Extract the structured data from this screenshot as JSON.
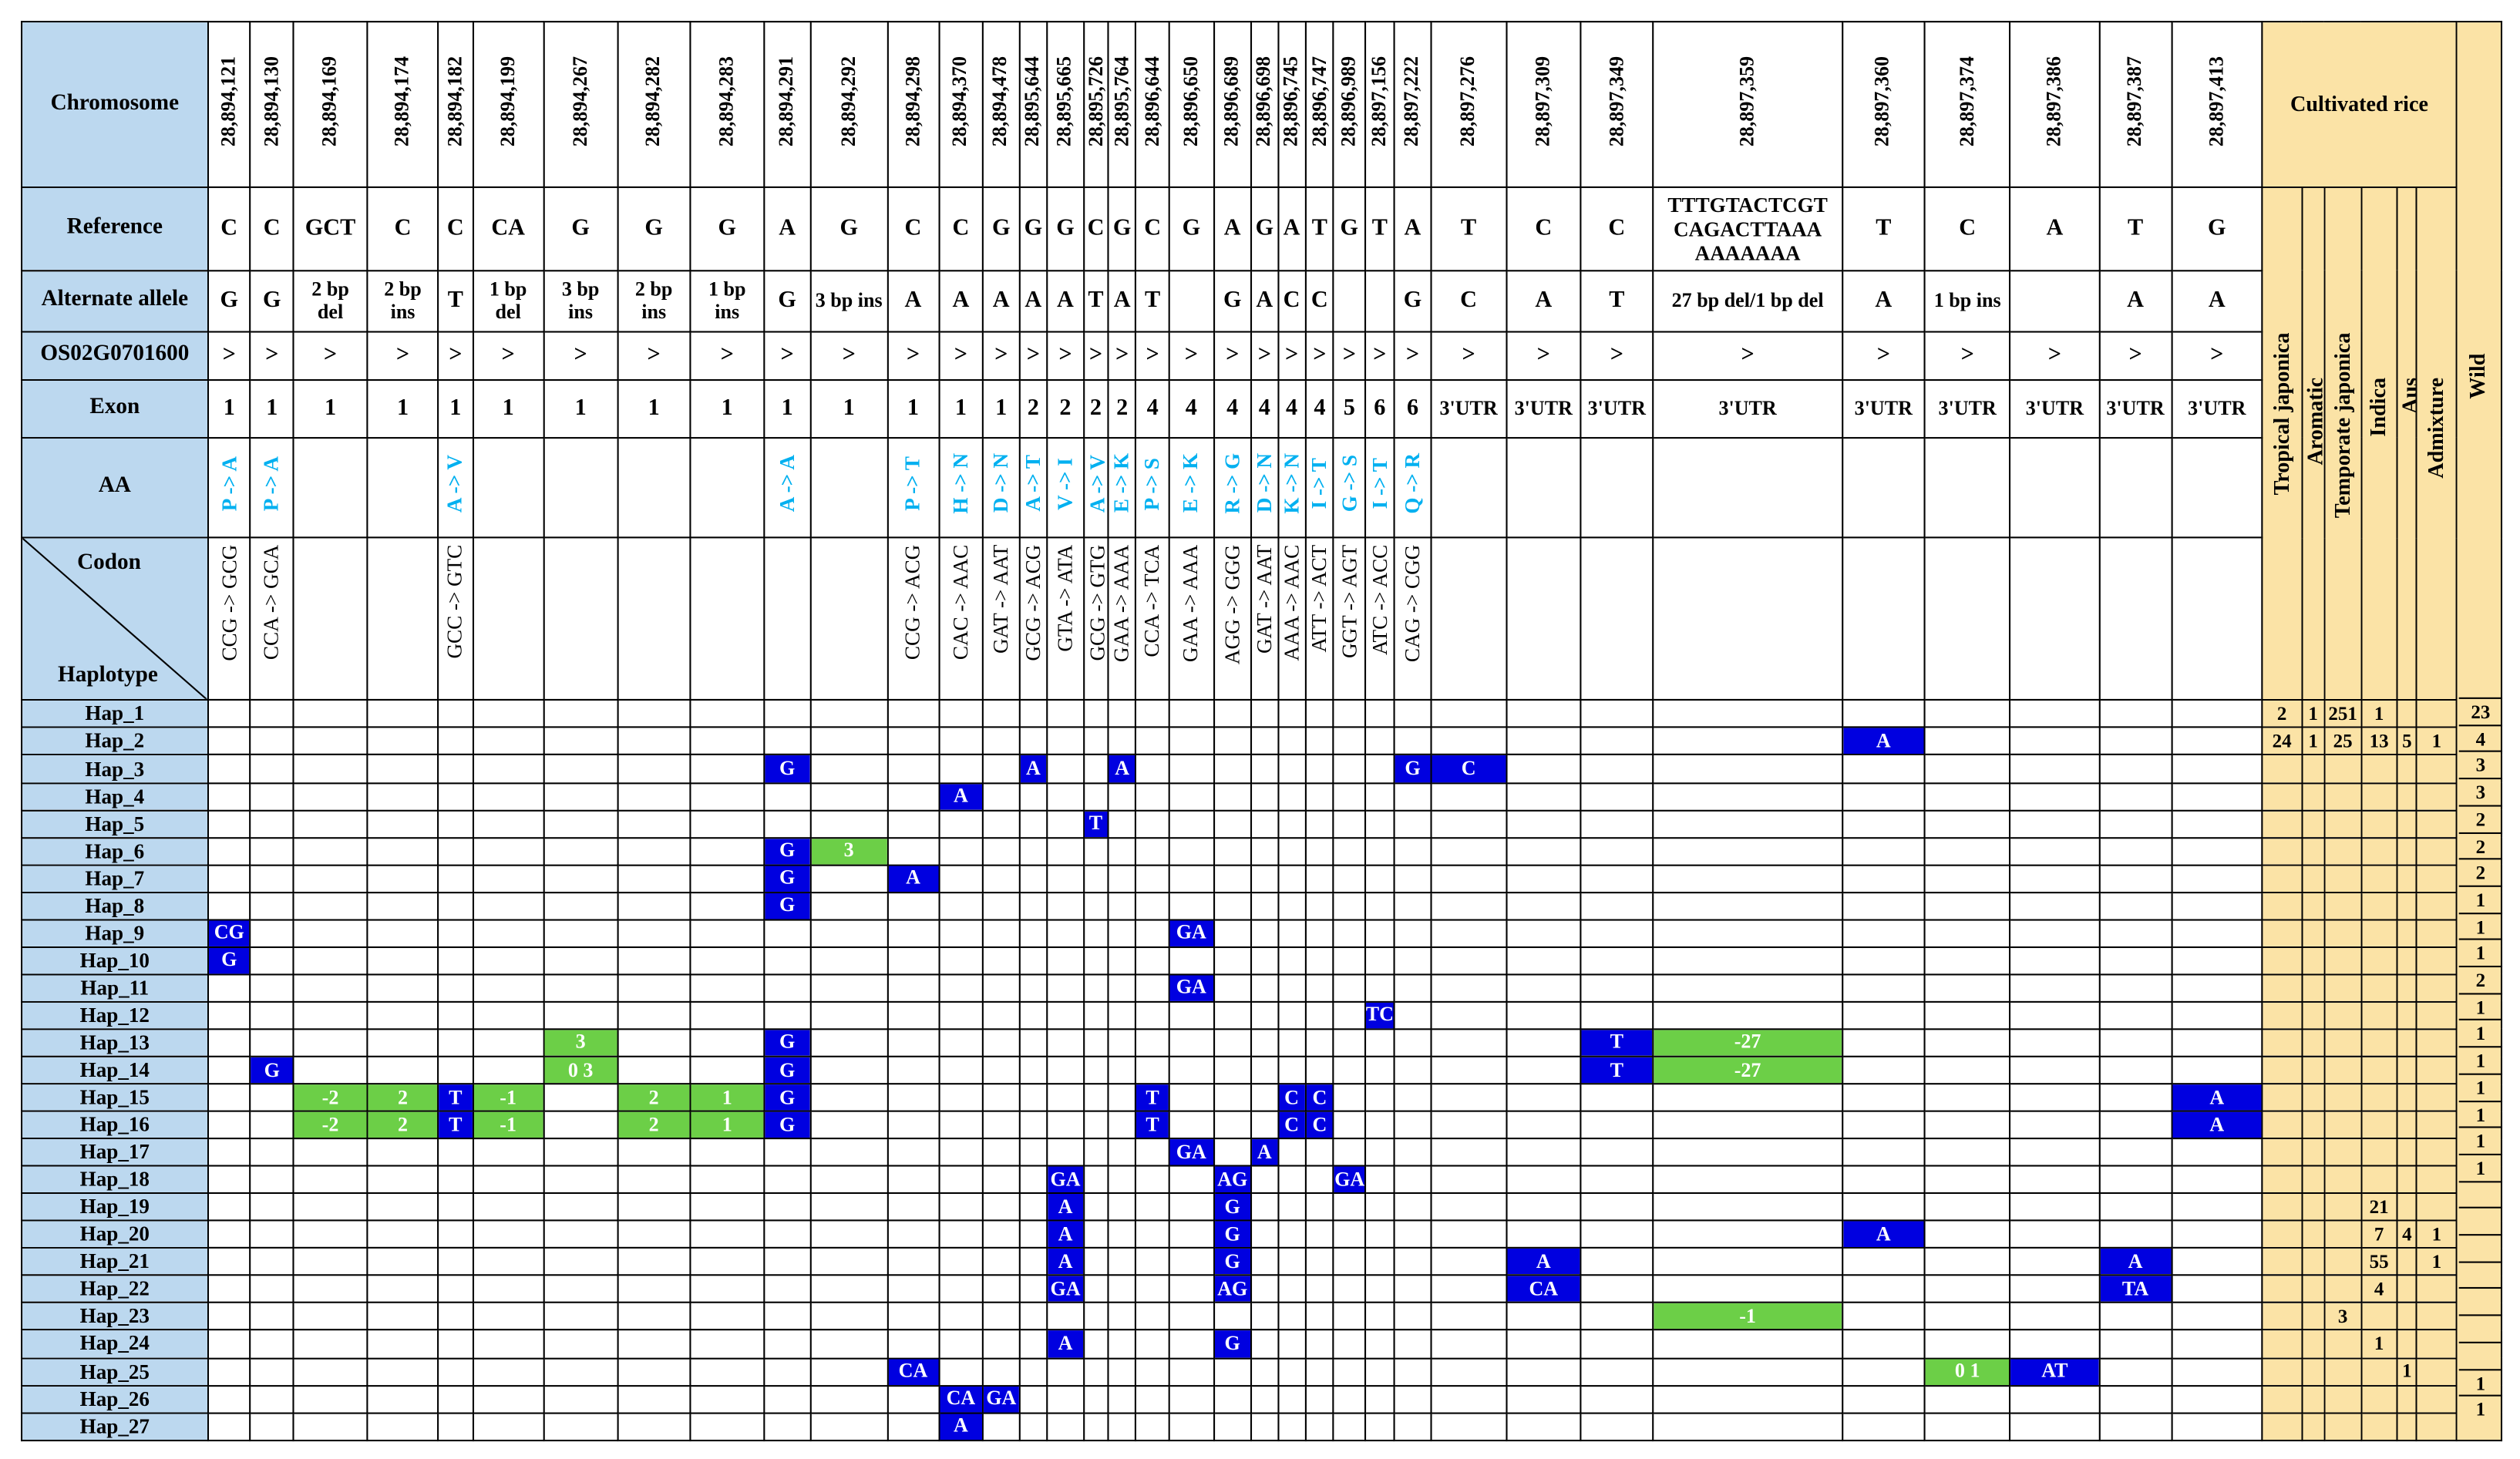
{
  "headers": {
    "chromosome": "Chromosome",
    "reference": "Reference",
    "alternate": "Alternate allele",
    "gene": "OS02G0701600",
    "exon": "Exon",
    "aa": "AA",
    "codon": "Codon",
    "haplotype": "Haplotype"
  },
  "groups": {
    "cultivated": "Cultivated rice",
    "wild": "Wild"
  },
  "subgroups": [
    "Tropical japonica",
    "Aromatic",
    "Temporate japonica",
    "Indica",
    "Aus",
    "Admixture"
  ],
  "columns": [
    {
      "pos": "28,894,121",
      "ref": "C",
      "alt": "G",
      "gene": ">",
      "exon": "1",
      "aa": "P -> A",
      "codon": "CCG -> GCG"
    },
    {
      "pos": "28,894,130",
      "ref": "C",
      "alt": "G",
      "gene": ">",
      "exon": "1",
      "aa": "P -> A",
      "codon": "CCA -> GCA"
    },
    {
      "pos": "28,894,169",
      "ref": "GCT",
      "alt": "2 bp del",
      "gene": ">",
      "exon": "1",
      "aa": "",
      "codon": ""
    },
    {
      "pos": "28,894,174",
      "ref": "C",
      "alt": "2 bp ins",
      "gene": ">",
      "exon": "1",
      "aa": "",
      "codon": ""
    },
    {
      "pos": "28,894,182",
      "ref": "C",
      "alt": "T",
      "gene": ">",
      "exon": "1",
      "aa": "A -> V",
      "codon": "GCC -> GTC"
    },
    {
      "pos": "28,894,199",
      "ref": "CA",
      "alt": "1 bp del",
      "gene": ">",
      "exon": "1",
      "aa": "",
      "codon": ""
    },
    {
      "pos": "28,894,267",
      "ref": "G",
      "alt": "3 bp ins",
      "gene": ">",
      "exon": "1",
      "aa": "",
      "codon": ""
    },
    {
      "pos": "28,894,282",
      "ref": "G",
      "alt": "2 bp ins",
      "gene": ">",
      "exon": "1",
      "aa": "",
      "codon": ""
    },
    {
      "pos": "28,894,283",
      "ref": "G",
      "alt": "1 bp ins",
      "gene": ">",
      "exon": "1",
      "aa": "",
      "codon": ""
    },
    {
      "pos": "28,894,291",
      "ref": "A",
      "alt": "G",
      "gene": ">",
      "exon": "1",
      "aa": "A -> A",
      "codon": ""
    },
    {
      "pos": "28,894,292",
      "ref": "G",
      "alt": "3 bp ins",
      "gene": ">",
      "exon": "1",
      "aa": "",
      "codon": ""
    },
    {
      "pos": "28,894,298",
      "ref": "C",
      "alt": "A",
      "gene": ">",
      "exon": "1",
      "aa": "P -> T",
      "codon": "CCG -> ACG"
    },
    {
      "pos": "28,894,370",
      "ref": "C",
      "alt": "A",
      "gene": ">",
      "exon": "1",
      "aa": "H -> N",
      "codon": "CAC -> AAC"
    },
    {
      "pos": "28,894,478",
      "ref": "G",
      "alt": "A",
      "gene": ">",
      "exon": "1",
      "aa": "D -> N",
      "codon": "GAT -> AAT"
    },
    {
      "pos": "28,895,644",
      "ref": "G",
      "alt": "A",
      "gene": ">",
      "exon": "2",
      "aa": "A -> T",
      "codon": "GCG -> ACG"
    },
    {
      "pos": "28,895,665",
      "ref": "G",
      "alt": "A",
      "gene": ">",
      "exon": "2",
      "aa": "V -> I",
      "codon": "GTA -> ATA"
    },
    {
      "pos": "28,895,726",
      "ref": "C",
      "alt": "T",
      "gene": ">",
      "exon": "2",
      "aa": "A -> V",
      "codon": "GCG -> GTG"
    },
    {
      "pos": "28,895,764",
      "ref": "G",
      "alt": "A",
      "gene": ">",
      "exon": "2",
      "aa": "E -> K",
      "codon": "GAA -> AAA"
    },
    {
      "pos": "28,896,644",
      "ref": "C",
      "alt": "T",
      "gene": ">",
      "exon": "4",
      "aa": "P -> S",
      "codon": "CCA -> TCA"
    },
    {
      "pos": "28,896,650",
      "ref": "G",
      "alt": "",
      "gene": ">",
      "exon": "4",
      "aa": "E -> K",
      "codon": "GAA -> AAA"
    },
    {
      "pos": "28,896,689",
      "ref": "A",
      "alt": "G",
      "gene": ">",
      "exon": "4",
      "aa": "R -> G",
      "codon": "AGG -> GGG"
    },
    {
      "pos": "28,896,698",
      "ref": "G",
      "alt": "A",
      "gene": ">",
      "exon": "4",
      "aa": "D -> N",
      "codon": "GAT -> AAT"
    },
    {
      "pos": "28,896,745",
      "ref": "A",
      "alt": "C",
      "gene": ">",
      "exon": "4",
      "aa": "K -> N",
      "codon": "AAA -> AAC"
    },
    {
      "pos": "28,896,747",
      "ref": "T",
      "alt": "C",
      "gene": ">",
      "exon": "4",
      "aa": "I -> T",
      "codon": "ATT -> ACT"
    },
    {
      "pos": "28,896,989",
      "ref": "G",
      "alt": "",
      "gene": ">",
      "exon": "5",
      "aa": "G -> S",
      "codon": "GGT -> AGT"
    },
    {
      "pos": "28,897,156",
      "ref": "T",
      "alt": "",
      "gene": ">",
      "exon": "6",
      "aa": "I -> T",
      "codon": "ATC -> ACC"
    },
    {
      "pos": "28,897,222",
      "ref": "A",
      "alt": "G",
      "gene": ">",
      "exon": "6",
      "aa": "Q -> R",
      "codon": "CAG -> CGG"
    },
    {
      "pos": "28,897,276",
      "ref": "T",
      "alt": "C",
      "gene": ">",
      "exon": "3'UTR",
      "aa": "",
      "codon": ""
    },
    {
      "pos": "28,897,309",
      "ref": "C",
      "alt": "A",
      "gene": ">",
      "exon": "3'UTR",
      "aa": "",
      "codon": ""
    },
    {
      "pos": "28,897,349",
      "ref": "C",
      "alt": "T",
      "gene": ">",
      "exon": "3'UTR",
      "aa": "",
      "codon": ""
    },
    {
      "pos": "28,897,359",
      "ref": "TTTGTACTCGT CAGACTTAAA AAAAAAA",
      "alt": "27 bp del/1 bp del",
      "gene": ">",
      "exon": "3'UTR",
      "aa": "",
      "codon": ""
    },
    {
      "pos": "28,897,360",
      "ref": "T",
      "alt": "A",
      "gene": ">",
      "exon": "3'UTR",
      "aa": "",
      "codon": ""
    },
    {
      "pos": "28,897,374",
      "ref": "C",
      "alt": "1 bp ins",
      "gene": ">",
      "exon": "3'UTR",
      "aa": "",
      "codon": ""
    },
    {
      "pos": "28,897,386",
      "ref": "A",
      "alt": "",
      "gene": ">",
      "exon": "3'UTR",
      "aa": "",
      "codon": ""
    },
    {
      "pos": "28,897,387",
      "ref": "T",
      "alt": "A",
      "gene": ">",
      "exon": "3'UTR",
      "aa": "",
      "codon": ""
    },
    {
      "pos": "28,897,413",
      "ref": "G",
      "alt": "A",
      "gene": ">",
      "exon": "3'UTR",
      "aa": "",
      "codon": ""
    }
  ],
  "haplotypes": [
    {
      "name": "Hap_1",
      "cells": [],
      "counts": [
        "2",
        "1",
        "251",
        "1",
        "",
        "",
        "23"
      ]
    },
    {
      "name": "Hap_2",
      "cells": [
        {
          "col": 31,
          "text": "A",
          "color": "blue"
        }
      ],
      "counts": [
        "24",
        "1",
        "25",
        "13",
        "5",
        "1",
        "4"
      ]
    },
    {
      "name": "Hap_3",
      "cells": [
        {
          "col": 9,
          "text": "G",
          "color": "blue"
        },
        {
          "col": 14,
          "text": "A",
          "color": "blue"
        },
        {
          "col": 17,
          "text": "A",
          "color": "blue"
        },
        {
          "col": 26,
          "text": "G",
          "color": "blue"
        },
        {
          "col": 27,
          "text": "C",
          "color": "blue"
        }
      ],
      "counts": [
        "",
        "",
        "",
        "",
        "",
        "",
        "3"
      ]
    },
    {
      "name": "Hap_4",
      "cells": [
        {
          "col": 12,
          "text": "A",
          "color": "blue"
        }
      ],
      "counts": [
        "",
        "",
        "",
        "",
        "",
        "",
        "3"
      ]
    },
    {
      "name": "Hap_5",
      "cells": [
        {
          "col": 16,
          "text": "T",
          "color": "blue"
        }
      ],
      "counts": [
        "",
        "",
        "",
        "",
        "",
        "",
        "2"
      ]
    },
    {
      "name": "Hap_6",
      "cells": [
        {
          "col": 9,
          "text": "G",
          "color": "blue"
        },
        {
          "col": 10,
          "text": "3",
          "color": "green"
        }
      ],
      "counts": [
        "",
        "",
        "",
        "",
        "",
        "",
        "2"
      ]
    },
    {
      "name": "Hap_7",
      "cells": [
        {
          "col": 9,
          "text": "G",
          "color": "blue"
        },
        {
          "col": 11,
          "text": "A",
          "color": "blue"
        }
      ],
      "counts": [
        "",
        "",
        "",
        "",
        "",
        "",
        "2"
      ]
    },
    {
      "name": "Hap_8",
      "cells": [
        {
          "col": 9,
          "text": "G",
          "color": "blue"
        }
      ],
      "counts": [
        "",
        "",
        "",
        "",
        "",
        "",
        "1"
      ]
    },
    {
      "name": "Hap_9",
      "cells": [
        {
          "col": 0,
          "text": "CG",
          "color": "blue"
        },
        {
          "col": 19,
          "text": "GA",
          "color": "blue"
        }
      ],
      "counts": [
        "",
        "",
        "",
        "",
        "",
        "",
        "1"
      ]
    },
    {
      "name": "Hap_10",
      "cells": [
        {
          "col": 0,
          "text": "G",
          "color": "blue"
        }
      ],
      "counts": [
        "",
        "",
        "",
        "",
        "",
        "",
        "1"
      ]
    },
    {
      "name": "Hap_11",
      "cells": [
        {
          "col": 19,
          "text": "GA",
          "color": "blue"
        }
      ],
      "counts": [
        "",
        "",
        "",
        "",
        "",
        "",
        "2"
      ]
    },
    {
      "name": "Hap_12",
      "cells": [
        {
          "col": 25,
          "text": "TC",
          "color": "blue"
        }
      ],
      "counts": [
        "",
        "",
        "",
        "",
        "",
        "",
        "1"
      ]
    },
    {
      "name": "Hap_13",
      "cells": [
        {
          "col": 6,
          "text": "3",
          "color": "green"
        },
        {
          "col": 9,
          "text": "G",
          "color": "blue"
        },
        {
          "col": 29,
          "text": "T",
          "color": "blue"
        },
        {
          "col": 30,
          "text": "-27",
          "color": "green"
        }
      ],
      "counts": [
        "",
        "",
        "",
        "",
        "",
        "",
        "1"
      ]
    },
    {
      "name": "Hap_14",
      "cells": [
        {
          "col": 1,
          "text": "G",
          "color": "blue"
        },
        {
          "col": 6,
          "text": "0 3",
          "color": "green"
        },
        {
          "col": 9,
          "text": "G",
          "color": "blue"
        },
        {
          "col": 29,
          "text": "T",
          "color": "blue"
        },
        {
          "col": 30,
          "text": "-27",
          "color": "green"
        }
      ],
      "counts": [
        "",
        "",
        "",
        "",
        "",
        "",
        "1"
      ]
    },
    {
      "name": "Hap_15",
      "cells": [
        {
          "col": 2,
          "text": "-2",
          "color": "green"
        },
        {
          "col": 3,
          "text": "2",
          "color": "green"
        },
        {
          "col": 4,
          "text": "T",
          "color": "blue"
        },
        {
          "col": 5,
          "text": "-1",
          "color": "green"
        },
        {
          "col": 7,
          "text": "2",
          "color": "green"
        },
        {
          "col": 8,
          "text": "1",
          "color": "green"
        },
        {
          "col": 9,
          "text": "G",
          "color": "blue"
        },
        {
          "col": 18,
          "text": "T",
          "color": "blue"
        },
        {
          "col": 22,
          "text": "C",
          "color": "blue"
        },
        {
          "col": 23,
          "text": "C",
          "color": "blue"
        },
        {
          "col": 35,
          "text": "A",
          "color": "blue"
        }
      ],
      "counts": [
        "",
        "",
        "",
        "",
        "",
        "",
        "1"
      ]
    },
    {
      "name": "Hap_16",
      "cells": [
        {
          "col": 2,
          "text": "-2",
          "color": "green"
        },
        {
          "col": 3,
          "text": "2",
          "color": "green"
        },
        {
          "col": 4,
          "text": "T",
          "color": "blue"
        },
        {
          "col": 5,
          "text": "-1",
          "color": "green"
        },
        {
          "col": 7,
          "text": "2",
          "color": "green"
        },
        {
          "col": 8,
          "text": "1",
          "color": "green"
        },
        {
          "col": 9,
          "text": "G",
          "color": "blue"
        },
        {
          "col": 18,
          "text": "T",
          "color": "blue"
        },
        {
          "col": 22,
          "text": "C",
          "color": "blue"
        },
        {
          "col": 23,
          "text": "C",
          "color": "blue"
        },
        {
          "col": 35,
          "text": "A",
          "color": "blue"
        }
      ],
      "counts": [
        "",
        "",
        "",
        "",
        "",
        "",
        "1"
      ]
    },
    {
      "name": "Hap_17",
      "cells": [
        {
          "col": 19,
          "text": "GA",
          "color": "blue"
        },
        {
          "col": 21,
          "text": "A",
          "color": "blue"
        }
      ],
      "counts": [
        "",
        "",
        "",
        "",
        "",
        "",
        "1"
      ]
    },
    {
      "name": "Hap_18",
      "cells": [
        {
          "col": 15,
          "text": "GA",
          "color": "blue"
        },
        {
          "col": 20,
          "text": "AG",
          "color": "blue"
        },
        {
          "col": 24,
          "text": "GA",
          "color": "blue"
        }
      ],
      "counts": [
        "",
        "",
        "",
        "",
        "",
        "",
        "1"
      ]
    },
    {
      "name": "Hap_19",
      "cells": [
        {
          "col": 15,
          "text": "A",
          "color": "blue"
        },
        {
          "col": 20,
          "text": "G",
          "color": "blue"
        }
      ],
      "counts": [
        "",
        "",
        "",
        "21",
        "",
        "",
        ""
      ]
    },
    {
      "name": "Hap_20",
      "cells": [
        {
          "col": 15,
          "text": "A",
          "color": "blue"
        },
        {
          "col": 20,
          "text": "G",
          "color": "blue"
        },
        {
          "col": 31,
          "text": "A",
          "color": "blue"
        }
      ],
      "counts": [
        "",
        "",
        "",
        "7",
        "4",
        "1",
        ""
      ]
    },
    {
      "name": "Hap_21",
      "cells": [
        {
          "col": 15,
          "text": "A",
          "color": "blue"
        },
        {
          "col": 20,
          "text": "G",
          "color": "blue"
        },
        {
          "col": 28,
          "text": "A",
          "color": "blue"
        },
        {
          "col": 34,
          "text": "A",
          "color": "blue"
        }
      ],
      "counts": [
        "",
        "",
        "",
        "55",
        "",
        "1",
        ""
      ]
    },
    {
      "name": "Hap_22",
      "cells": [
        {
          "col": 15,
          "text": "GA",
          "color": "blue"
        },
        {
          "col": 20,
          "text": "AG",
          "color": "blue"
        },
        {
          "col": 28,
          "text": "CA",
          "color": "blue"
        },
        {
          "col": 34,
          "text": "TA",
          "color": "blue"
        }
      ],
      "counts": [
        "",
        "",
        "",
        "4",
        "",
        "",
        ""
      ]
    },
    {
      "name": "Hap_23",
      "cells": [
        {
          "col": 30,
          "text": "-1",
          "color": "green"
        }
      ],
      "counts": [
        "",
        "",
        "3",
        "",
        "",
        "",
        ""
      ]
    },
    {
      "name": "Hap_24",
      "cells": [
        {
          "col": 15,
          "text": "A",
          "color": "blue"
        },
        {
          "col": 20,
          "text": "G",
          "color": "blue"
        }
      ],
      "counts": [
        "",
        "",
        "",
        "1",
        "",
        "",
        ""
      ]
    },
    {
      "name": "Hap_25",
      "cells": [
        {
          "col": 11,
          "text": "CA",
          "color": "blue"
        },
        {
          "col": 32,
          "text": "0 1",
          "color": "green"
        },
        {
          "col": 33,
          "text": "AT",
          "color": "blue"
        }
      ],
      "counts": [
        "",
        "",
        "",
        "",
        "1",
        "",
        ""
      ]
    },
    {
      "name": "Hap_26",
      "cells": [
        {
          "col": 12,
          "text": "CA",
          "color": "blue"
        },
        {
          "col": 13,
          "text": "GA",
          "color": "blue"
        }
      ],
      "counts": [
        "",
        "",
        "",
        "",
        "",
        "",
        "1"
      ]
    },
    {
      "name": "Hap_27",
      "cells": [
        {
          "col": 12,
          "text": "A",
          "color": "blue"
        }
      ],
      "counts": [
        "",
        "",
        "",
        "",
        "",
        "",
        "1"
      ]
    }
  ],
  "colors": {
    "label_bg": "#bcd8ef",
    "cultivated_bg": "#fbe3a6",
    "snp": "#0000e0",
    "indel": "#6ccf47",
    "aa_text": "#00b0f0"
  }
}
